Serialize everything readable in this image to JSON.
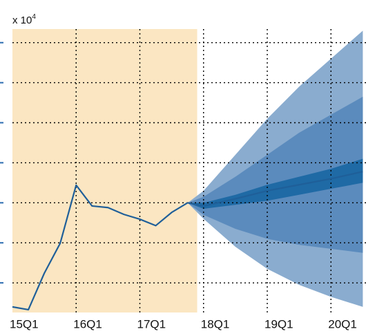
{
  "chart_data": {
    "type": "fan",
    "y_multiplier": {
      "base": "x 10",
      "exponent": "4"
    },
    "xlim": [
      2015,
      2020.55
    ],
    "xticks": [
      {
        "value": 2015,
        "label": "15Q1"
      },
      {
        "value": 2016,
        "label": "16Q1"
      },
      {
        "value": 2017,
        "label": "17Q1"
      },
      {
        "value": 2018,
        "label": "18Q1"
      },
      {
        "value": 2019,
        "label": "19Q1"
      },
      {
        "value": 2020,
        "label": "20Q1"
      }
    ],
    "ylim": [
      0.26,
      7.34
    ],
    "yticks": [
      1,
      2,
      3,
      4,
      5,
      6,
      7
    ],
    "grid": true,
    "shaded_region": {
      "xlim": [
        2015,
        2017.9
      ],
      "color": "#fbe6c2"
    },
    "bands": [
      {
        "color": "#8aaccf",
        "x": [
          2017.75,
          2018,
          2018.5,
          2019,
          2019.5,
          2020,
          2020.5
        ],
        "upper": [
          3.0,
          3.3,
          4.2,
          5.1,
          5.9,
          6.6,
          7.3
        ],
        "lower": [
          3.0,
          2.6,
          1.9,
          1.35,
          0.95,
          0.65,
          0.4
        ]
      },
      {
        "color": "#5b8bbd",
        "x": [
          2017.75,
          2018,
          2018.5,
          2019,
          2019.5,
          2020,
          2020.5
        ],
        "upper": [
          3.0,
          3.15,
          3.65,
          4.2,
          4.75,
          5.2,
          5.65
        ],
        "lower": [
          3.0,
          2.7,
          2.35,
          2.1,
          1.95,
          1.85,
          1.75
        ]
      },
      {
        "color": "#1f6aa5",
        "x": [
          2017.75,
          2018,
          2018.5,
          2019,
          2019.5,
          2020,
          2020.5
        ],
        "upper": [
          3.0,
          3.0,
          3.2,
          3.45,
          3.65,
          3.85,
          4.1
        ],
        "lower": [
          3.0,
          2.85,
          2.95,
          3.05,
          3.2,
          3.35,
          3.5
        ]
      }
    ],
    "series": [
      {
        "color": "#1f5f99",
        "x": [
          2015,
          2015.25,
          2015.5,
          2015.75,
          2016,
          2016.25,
          2016.5,
          2016.75,
          2017,
          2017.25,
          2017.5,
          2017.75
        ],
        "values": [
          0.4,
          0.33,
          1.24,
          1.99,
          3.44,
          2.92,
          2.88,
          2.71,
          2.59,
          2.43,
          2.76,
          3.0
        ]
      },
      {
        "color": "#1f5f99",
        "x": [
          2017.75,
          2018,
          2018.5,
          2019,
          2019.5,
          2020,
          2020.5
        ],
        "values": [
          3.0,
          2.92,
          3.1,
          3.3,
          3.45,
          3.6,
          3.78
        ]
      }
    ]
  }
}
